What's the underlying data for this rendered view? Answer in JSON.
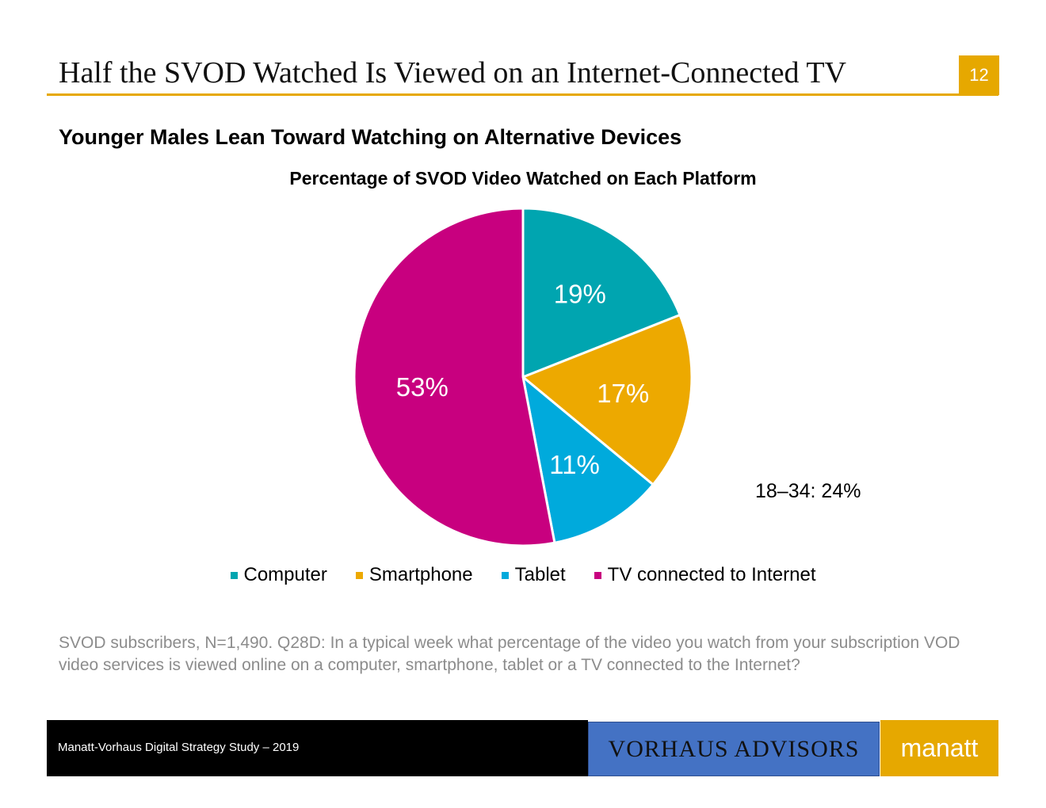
{
  "header": {
    "title": "Half the SVOD Watched Is Viewed on an Internet-Connected TV",
    "page_number": "12"
  },
  "subtitle": "Younger Males Lean Toward Watching on Alternative Devices",
  "callout": "18–34: 24%",
  "footnote": "SVOD subscribers, N=1,490. Q28D: In a typical week what percentage of the video you watch from your subscription VOD video services is viewed online on a computer, smartphone, tablet or a TV connected to the Internet?",
  "footer": {
    "study": "Manatt-Vorhaus Digital Strategy Study – 2019",
    "brand_left": "VORHAUS ADVISORS",
    "brand_right": "manatt"
  },
  "colors": {
    "accent": "#E6A800",
    "footer_blue": "#4472C4"
  },
  "chart_data": {
    "type": "pie",
    "title": "Percentage of SVOD Video Watched on Each Platform",
    "categories": [
      "Computer",
      "Smartphone",
      "Tablet",
      "TV connected to Internet"
    ],
    "values": [
      19,
      17,
      11,
      53
    ],
    "labels": [
      "19%",
      "17%",
      "11%",
      "53%"
    ],
    "colors": [
      "#00A5B0",
      "#EDA900",
      "#00AADC",
      "#C8007F"
    ],
    "start": "12 o'clock, clockwise",
    "legend": "bottom"
  }
}
